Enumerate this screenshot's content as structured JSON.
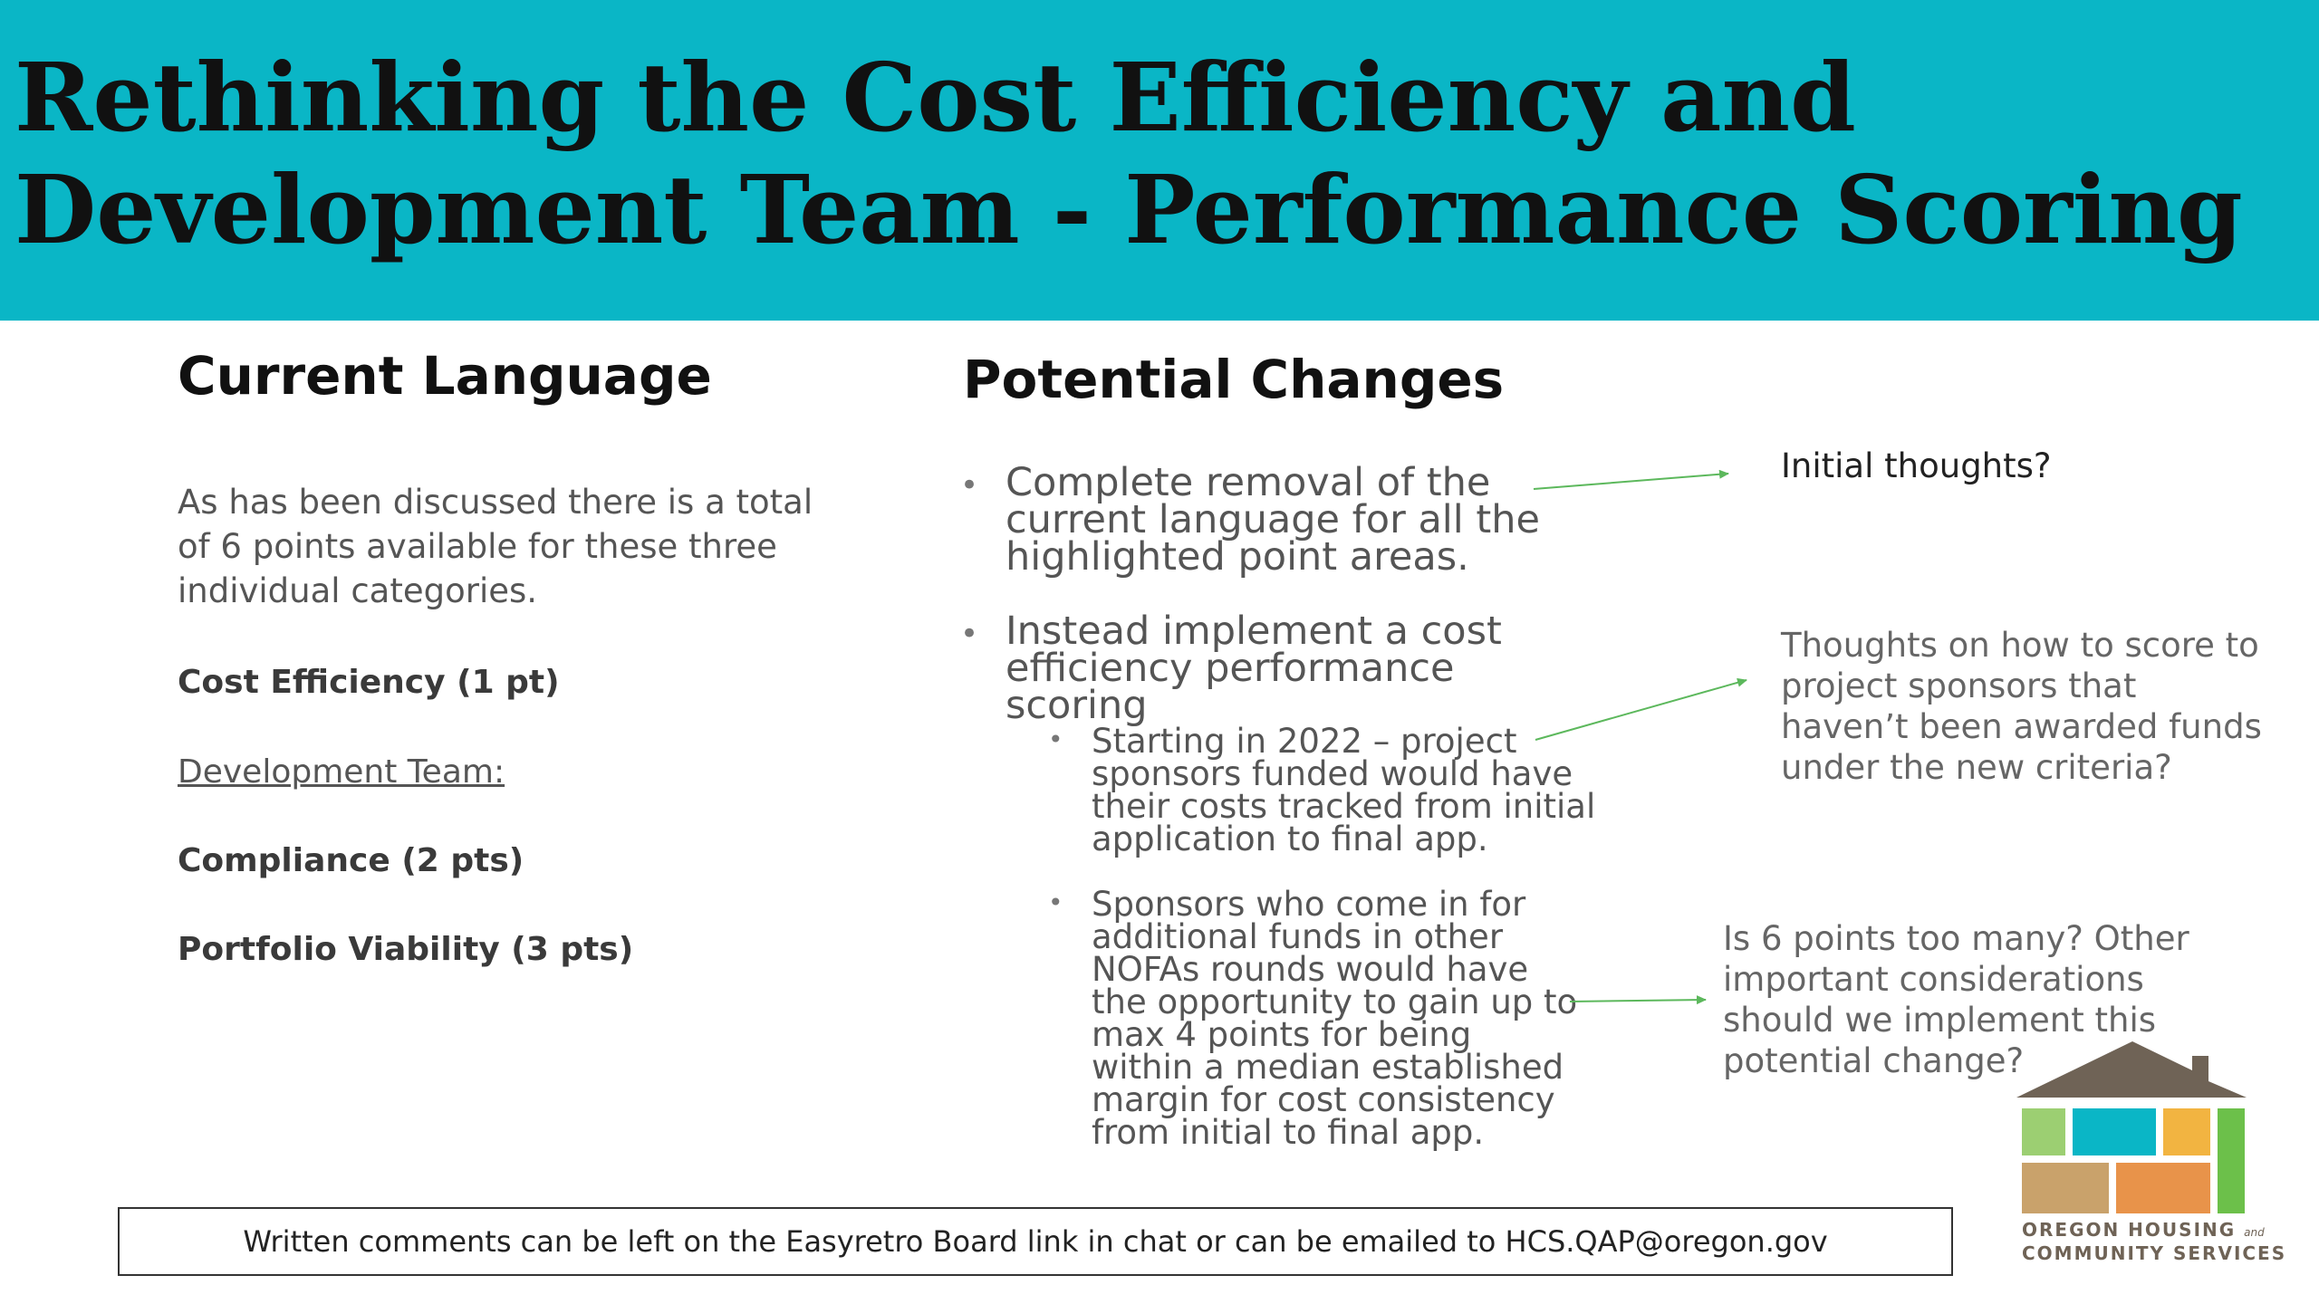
{
  "slide": {
    "title_line1": "Rethinking the Cost Efficiency and",
    "title_line2": "Development Team - Performance Scoring",
    "colors": {
      "header": "#0ab6c6",
      "arrow": "#5cb85c"
    }
  },
  "left": {
    "heading": "Current Language",
    "intro": "As has been discussed there is a total of 6 points available for these three individual categories.",
    "items": [
      {
        "label": "Cost Efficiency (1 pt)"
      },
      {
        "label": "Development Team:"
      },
      {
        "label": "Compliance (2 pts)"
      },
      {
        "label": "Portfolio Viability (3 pts)"
      }
    ]
  },
  "right": {
    "heading": "Potential Changes",
    "bullets": [
      "Complete removal of the current language for all the highlighted point areas.",
      "Instead implement a cost efficiency performance scoring"
    ],
    "sub_bullets": [
      "Starting in 2022 – project sponsors funded would have their costs tracked from initial application to final app.",
      "Sponsors who come in for additional funds in other NOFAs rounds would have the opportunity to gain up to max 4 points for being within a median established margin for cost consistency from initial to final app."
    ]
  },
  "notes": [
    "Initial thoughts?",
    "Thoughts on how to score to project sponsors that haven’t been awarded funds under the new criteria?",
    "Is 6 points too many? Other important considerations should we implement this potential change?"
  ],
  "footer": {
    "text": "Written comments can be left on the Easyretro Board link in chat or can be emailed to HCS.QAP@oregon.gov"
  },
  "logo": {
    "line1": "OREGON HOUSING",
    "and": "and",
    "line2": "COMMUNITY SERVICES",
    "icon": "house-logo-icon"
  }
}
